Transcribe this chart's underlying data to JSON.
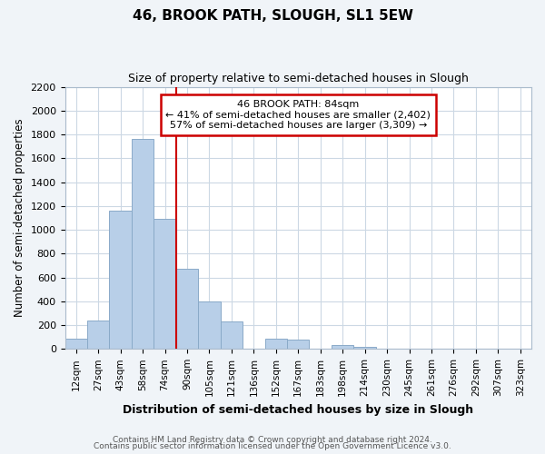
{
  "title": "46, BROOK PATH, SLOUGH, SL1 5EW",
  "subtitle": "Size of property relative to semi-detached houses in Slough",
  "xlabel": "Distribution of semi-detached houses by size in Slough",
  "ylabel": "Number of semi-detached properties",
  "categories": [
    "12sqm",
    "27sqm",
    "43sqm",
    "58sqm",
    "74sqm",
    "90sqm",
    "105sqm",
    "121sqm",
    "136sqm",
    "152sqm",
    "167sqm",
    "183sqm",
    "198sqm",
    "214sqm",
    "230sqm",
    "245sqm",
    "261sqm",
    "276sqm",
    "292sqm",
    "307sqm",
    "323sqm"
  ],
  "values": [
    90,
    240,
    1160,
    1760,
    1090,
    670,
    400,
    230,
    0,
    85,
    75,
    0,
    30,
    20,
    0,
    0,
    0,
    0,
    0,
    0,
    0
  ],
  "bar_color": "#b8cfe8",
  "bar_edge_color": "#8aaac8",
  "property_line_x": 5,
  "annotation_title": "46 BROOK PATH: 84sqm",
  "annotation_line1": "← 41% of semi-detached houses are smaller (2,402)",
  "annotation_line2": "57% of semi-detached houses are larger (3,309) →",
  "annotation_box_color": "#ffffff",
  "annotation_box_edge": "#cc0000",
  "property_line_color": "#cc0000",
  "ylim": [
    0,
    2200
  ],
  "yticks": [
    0,
    200,
    400,
    600,
    800,
    1000,
    1200,
    1400,
    1600,
    1800,
    2000,
    2200
  ],
  "footer1": "Contains HM Land Registry data © Crown copyright and database right 2024.",
  "footer2": "Contains public sector information licensed under the Open Government Licence v3.0.",
  "bg_color": "#f0f4f8",
  "plot_bg_color": "#ffffff",
  "grid_color": "#ccd8e4"
}
